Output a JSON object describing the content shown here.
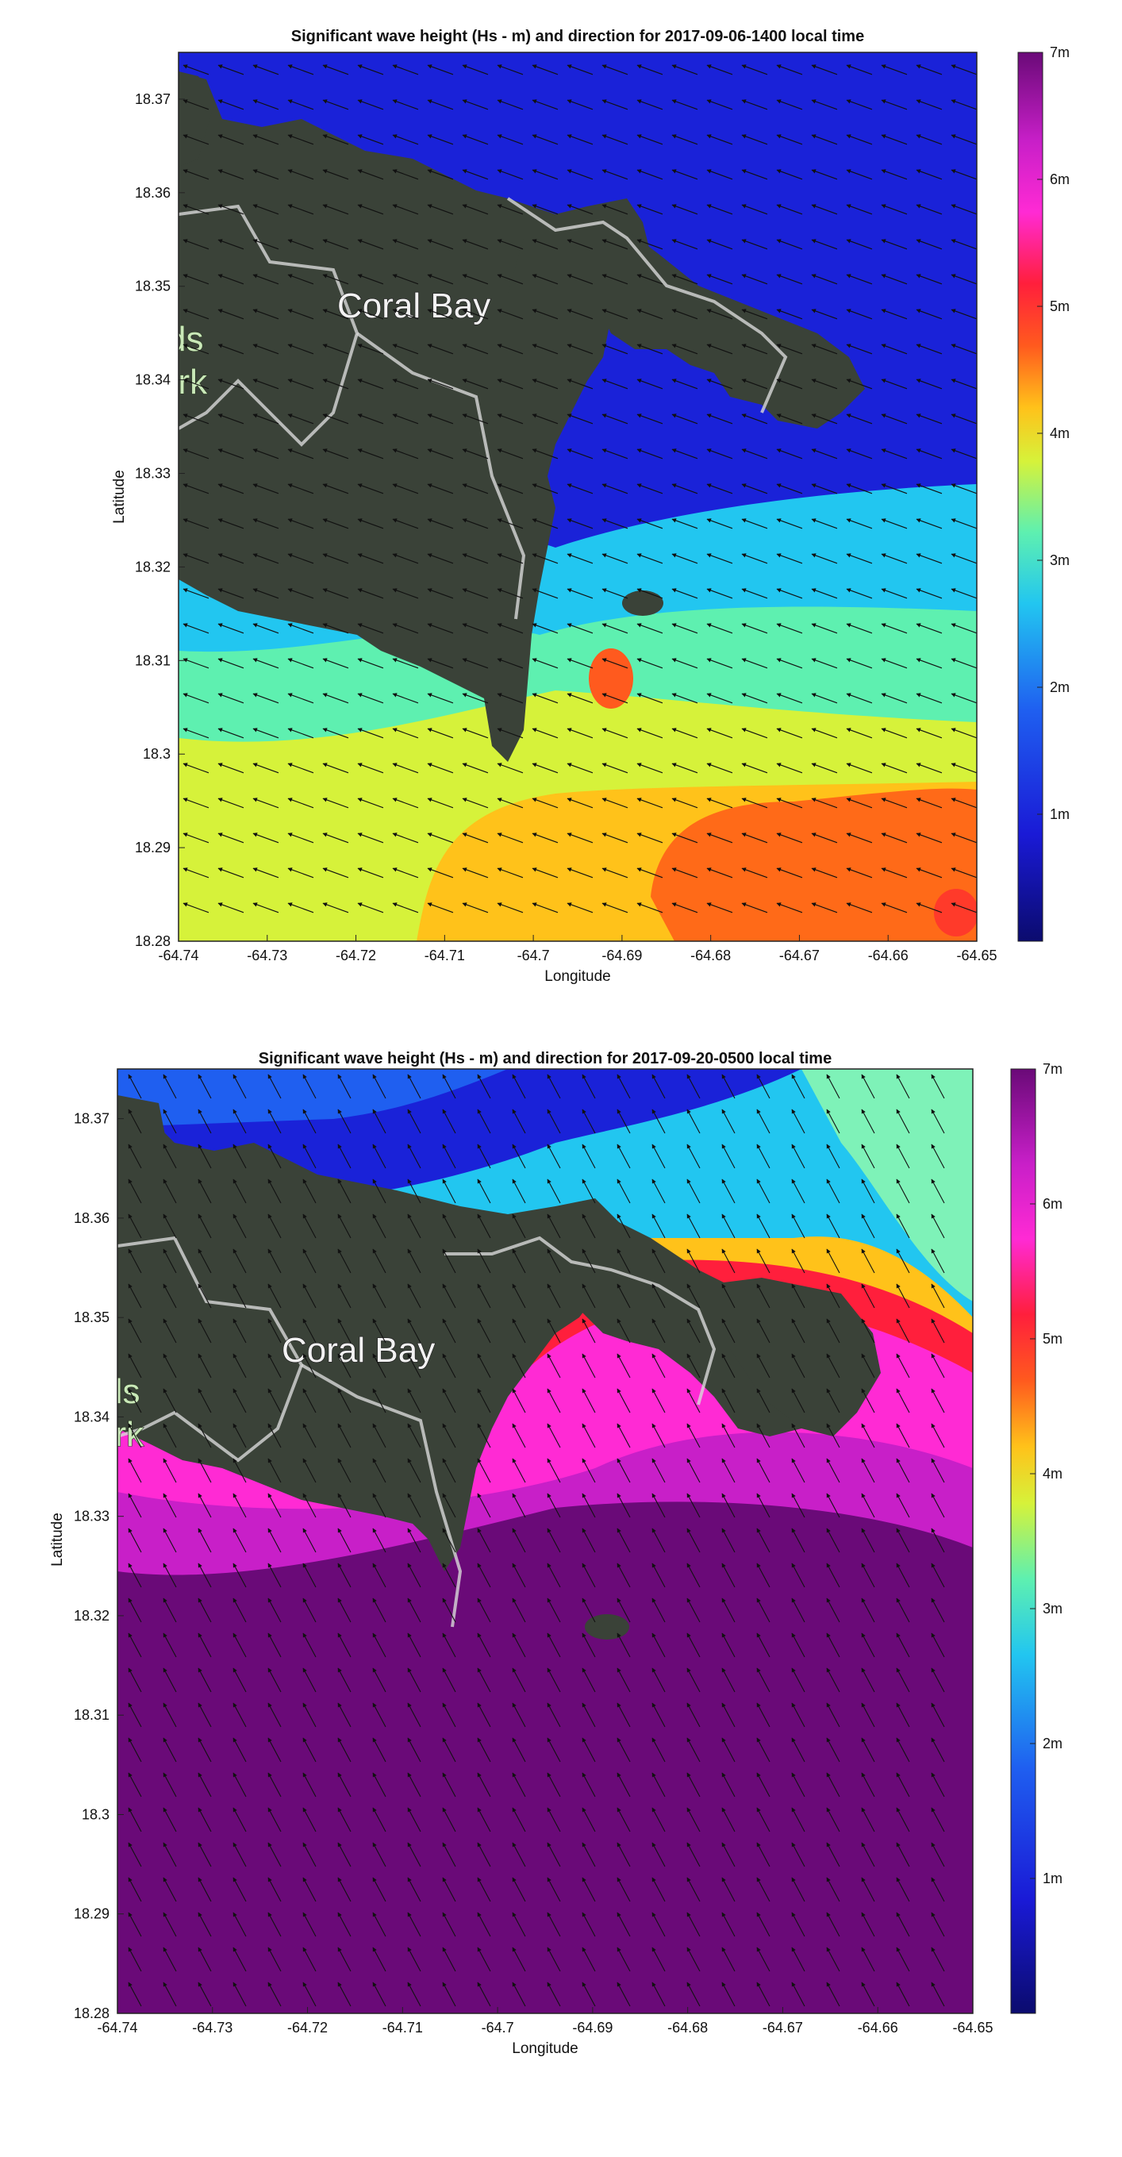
{
  "chart_data": [
    {
      "type": "heatmap",
      "title": "Significant wave height (Hs - m) and direction for 2017-09-06-1400 local time",
      "xlabel": "Longitude",
      "ylabel": "Latitude",
      "xlim": [
        -64.74,
        -64.65
      ],
      "ylim": [
        18.28,
        18.375
      ],
      "x_ticks": [
        "-64.74",
        "-64.73",
        "-64.72",
        "-64.71",
        "-64.7",
        "-64.69",
        "-64.68",
        "-64.67",
        "-64.66",
        "-64.65"
      ],
      "y_ticks": [
        "18.28",
        "18.29",
        "18.3",
        "18.31",
        "18.32",
        "18.33",
        "18.34",
        "18.35",
        "18.36",
        "18.37"
      ],
      "colorbar": {
        "label_ticks": [
          "1m",
          "2m",
          "3m",
          "4m",
          "5m",
          "6m",
          "7m"
        ],
        "range": [
          0,
          7
        ]
      },
      "map_labels": [
        "Coral Bay",
        "ds",
        "ark"
      ],
      "wave_direction": "toward west-northwest",
      "hs_bands": [
        {
          "latitude": 18.285,
          "hs_m": 4.2
        },
        {
          "latitude": 18.295,
          "hs_m": 3.8
        },
        {
          "latitude": 18.305,
          "hs_m": 3.3
        },
        {
          "latitude": 18.315,
          "hs_m": 2.6
        },
        {
          "latitude": 18.325,
          "hs_m": 1.8
        },
        {
          "latitude": 18.345,
          "hs_m": 0.9
        },
        {
          "latitude": 18.365,
          "hs_m": 0.8
        }
      ],
      "max_hs_m": 5.2
    },
    {
      "type": "heatmap",
      "title": "Significant wave height (Hs - m) and direction for 2017-09-20-0500 local time",
      "xlabel": "Longitude",
      "ylabel": "Latitude",
      "xlim": [
        -64.74,
        -64.65
      ],
      "ylim": [
        18.28,
        18.375
      ],
      "x_ticks": [
        "-64.74",
        "-64.73",
        "-64.72",
        "-64.71",
        "-64.7",
        "-64.69",
        "-64.68",
        "-64.67",
        "-64.66",
        "-64.65"
      ],
      "y_ticks": [
        "18.28",
        "18.29",
        "18.3",
        "18.31",
        "18.32",
        "18.33",
        "18.34",
        "18.35",
        "18.36",
        "18.37"
      ],
      "colorbar": {
        "label_ticks": [
          "1m",
          "2m",
          "3m",
          "4m",
          "5m",
          "6m",
          "7m"
        ],
        "range": [
          0,
          7
        ]
      },
      "map_labels": [
        "Coral Bay",
        "ds",
        "ark"
      ],
      "wave_direction": "toward north-northwest (west near northern coast)",
      "hs_bands": [
        {
          "latitude": 18.285,
          "hs_m": 6.8
        },
        {
          "latitude": 18.295,
          "hs_m": 6.6
        },
        {
          "latitude": 18.305,
          "hs_m": 6.2
        },
        {
          "latitude": 18.315,
          "hs_m": 5.8
        },
        {
          "latitude": 18.325,
          "hs_m": 5.2
        },
        {
          "latitude": 18.355,
          "hs_m": 2.8
        },
        {
          "latitude": 18.37,
          "hs_m": 1.5
        }
      ],
      "max_hs_m": 7.0
    }
  ]
}
